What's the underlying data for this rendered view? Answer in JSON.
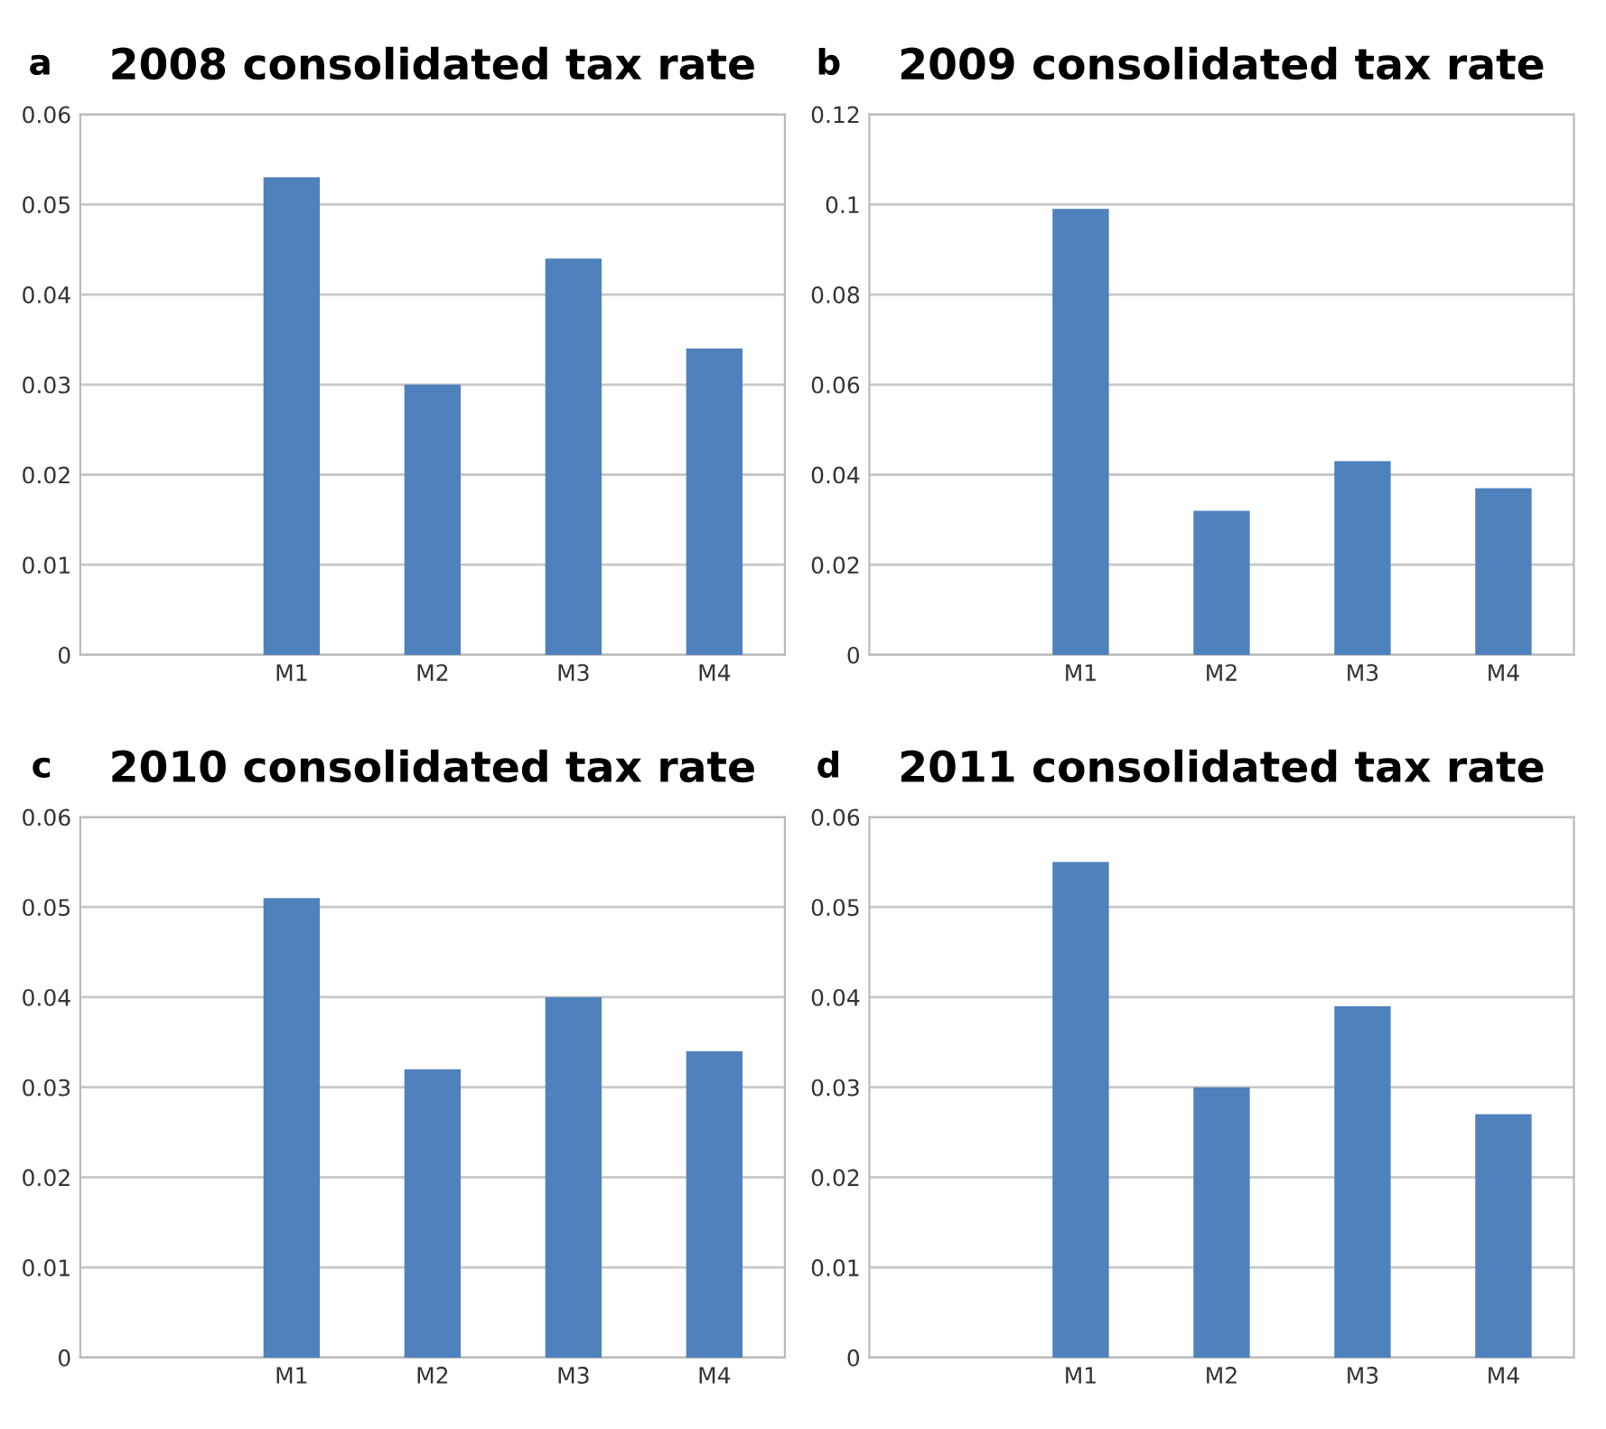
{
  "chart_data": [
    {
      "type": "bar",
      "title": "2008 consolidated tax rate",
      "annotations": [
        "a"
      ],
      "categories": [
        null,
        "M1",
        "M2",
        "M3",
        "M4"
      ],
      "values": [
        null,
        0.053,
        0.03,
        0.044,
        0.034
      ],
      "color": "#4f81bd",
      "ylim": [
        0,
        0.06
      ],
      "yticks": [
        0,
        0.01,
        0.02,
        0.03,
        0.04,
        0.05,
        0.06
      ],
      "grid": "y"
    },
    {
      "type": "bar",
      "title": "2009 consolidated tax rate",
      "annotations": [
        "b"
      ],
      "categories": [
        null,
        "M1",
        "M2",
        "M3",
        "M4"
      ],
      "values": [
        null,
        0.099,
        0.032,
        0.043,
        0.037
      ],
      "color": "#4f81bd",
      "ylim": [
        0,
        0.12
      ],
      "yticks": [
        0,
        0.02,
        0.04,
        0.06,
        0.08,
        0.1,
        0.12
      ],
      "grid": "y"
    },
    {
      "type": "bar",
      "title": "2010 consolidated tax rate",
      "annotations": [
        "c"
      ],
      "categories": [
        null,
        "M1",
        "M2",
        "M3",
        "M4"
      ],
      "values": [
        null,
        0.051,
        0.032,
        0.04,
        0.034
      ],
      "color": "#4f81bd",
      "ylim": [
        0,
        0.06
      ],
      "yticks": [
        0,
        0.01,
        0.02,
        0.03,
        0.04,
        0.05,
        0.06
      ],
      "grid": "y"
    },
    {
      "type": "bar",
      "title": "2011 consolidated tax rate",
      "annotations": [
        "d"
      ],
      "categories": [
        null,
        "M1",
        "M2",
        "M3",
        "M4"
      ],
      "values": [
        null,
        0.055,
        0.03,
        0.039,
        0.027
      ],
      "color": "#4f81bd",
      "ylim": [
        0,
        0.06
      ],
      "yticks": [
        0,
        0.01,
        0.02,
        0.03,
        0.04,
        0.05,
        0.06
      ],
      "grid": "y"
    }
  ]
}
